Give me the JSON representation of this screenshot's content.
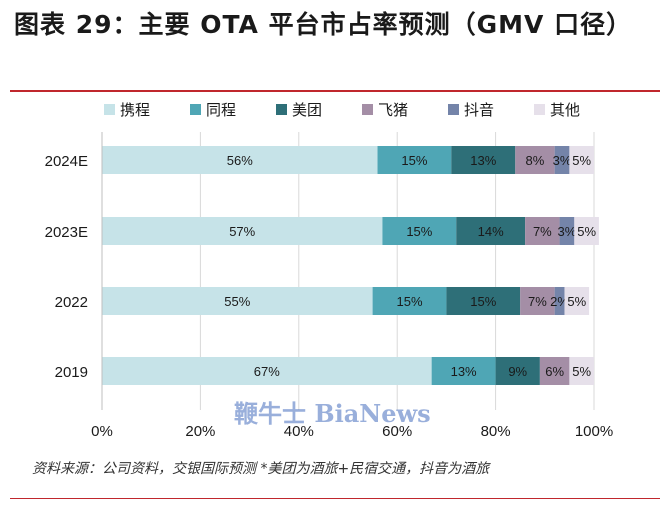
{
  "title": "图表 29：主要 OTA 平台市占率预测（GMV 口径）",
  "footnote": "资料来源：公司资料，交银国际预测   *美团为酒旅+民宿交通，抖音为酒旅",
  "watermark": "鞭牛士 BiaNews",
  "chart_data": {
    "type": "bar",
    "orientation": "horizontal",
    "stacked": true,
    "categories": [
      "2024E",
      "2023E",
      "2022",
      "2019"
    ],
    "series": [
      {
        "name": "携程",
        "values": [
          56,
          57,
          55,
          67
        ],
        "labels": [
          "56%",
          "57%",
          "55%",
          "67%"
        ],
        "color": "#c6e3e8"
      },
      {
        "name": "同程",
        "values": [
          15,
          15,
          15,
          13
        ],
        "labels": [
          "15%",
          "15%",
          "15%",
          "13%"
        ],
        "color": "#4fa6b5"
      },
      {
        "name": "美团",
        "values": [
          13,
          14,
          15,
          9
        ],
        "labels": [
          "13%",
          "14%",
          "15%",
          "9%"
        ],
        "color": "#2e6f78"
      },
      {
        "name": "飞猪",
        "values": [
          8,
          7,
          7,
          6
        ],
        "labels": [
          "8%",
          "7%",
          "7%",
          "6%"
        ],
        "color": "#a48ea6"
      },
      {
        "name": "抖音",
        "values": [
          3,
          3,
          2,
          0
        ],
        "labels": [
          "3%",
          "3%",
          "2%",
          ""
        ],
        "color": "#7484a9"
      },
      {
        "name": "其他",
        "values": [
          5,
          5,
          5,
          5
        ],
        "labels": [
          "5%",
          "5%",
          "5%",
          "5%"
        ],
        "color": "#e6e0ea"
      }
    ],
    "xlim": [
      0,
      100
    ],
    "xticks": [
      "0%",
      "20%",
      "40%",
      "60%",
      "80%",
      "100%"
    ],
    "legend_position": "top",
    "grid": true
  }
}
